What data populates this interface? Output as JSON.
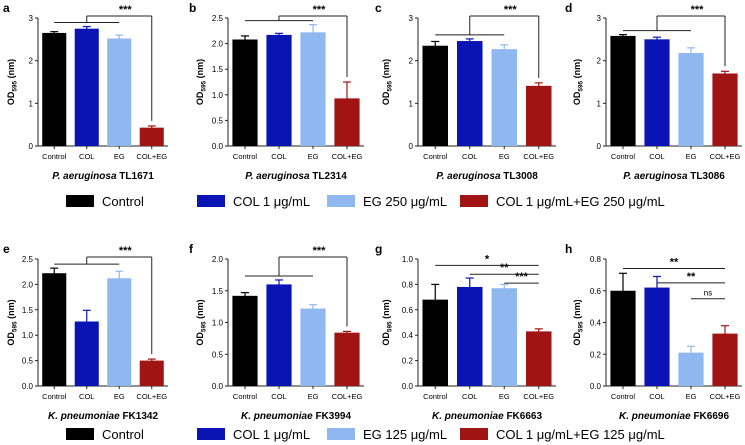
{
  "colors": {
    "control": "#000000",
    "col": "#0a14b4",
    "eg": "#8fb7f0",
    "combo": "#a01414",
    "axis": "#222222"
  },
  "axis_label": {
    "main": "OD",
    "sub": "595",
    "unit": " (nm)"
  },
  "legends": [
    {
      "items": [
        "Control",
        "COL 1 μg/mL",
        "EG 250 μg/mL",
        "COL 1 μg/mL+EG 250 μg/mL"
      ]
    },
    {
      "items": [
        "Control",
        "COL 1 μg/mL",
        "EG 125 μg/mL",
        "COL 1 μg/mL+EG 125 μg/mL"
      ]
    }
  ],
  "chart_data": [
    {
      "type": "bar",
      "panel": "a",
      "italic": "P. aeruginosa",
      "strain": "TL1671",
      "categories": [
        "Control",
        "COL",
        "EG",
        "COL+EG"
      ],
      "values": [
        2.65,
        2.75,
        2.52,
        0.43
      ],
      "errors": [
        0.03,
        0.05,
        0.08,
        0.04
      ],
      "ylim": [
        0,
        3
      ],
      "yticks": [
        "0",
        "1",
        "2",
        "3"
      ],
      "sig": [
        {
          "type": "group",
          "label": "***"
        }
      ]
    },
    {
      "type": "bar",
      "panel": "b",
      "italic": "P. aeruginosa",
      "strain": "TL2314",
      "categories": [
        "Control",
        "COL",
        "EG",
        "COL+EG"
      ],
      "values": [
        2.08,
        2.17,
        2.22,
        0.93
      ],
      "errors": [
        0.07,
        0.03,
        0.15,
        0.32
      ],
      "ylim": [
        0,
        2.5
      ],
      "yticks": [
        "0.0",
        "0.5",
        "1.0",
        "1.5",
        "2.0",
        "2.5"
      ],
      "sig": [
        {
          "type": "group",
          "label": "***"
        }
      ]
    },
    {
      "type": "bar",
      "panel": "c",
      "italic": "P. aeruginosa",
      "strain": "TL3008",
      "categories": [
        "Control",
        "COL",
        "EG",
        "COL+EG"
      ],
      "values": [
        2.35,
        2.46,
        2.27,
        1.41
      ],
      "errors": [
        0.1,
        0.05,
        0.1,
        0.07
      ],
      "ylim": [
        0,
        3
      ],
      "yticks": [
        "0",
        "1",
        "2",
        "3"
      ],
      "sig": [
        {
          "type": "group",
          "label": "***"
        }
      ]
    },
    {
      "type": "bar",
      "panel": "d",
      "italic": "P. aeruginosa",
      "strain": "TL3086",
      "categories": [
        "Control",
        "COL",
        "EG",
        "COL+EG"
      ],
      "values": [
        2.58,
        2.5,
        2.18,
        1.7
      ],
      "errors": [
        0.03,
        0.05,
        0.12,
        0.05
      ],
      "ylim": [
        0,
        3
      ],
      "yticks": [
        "0",
        "1",
        "2",
        "3"
      ],
      "sig": [
        {
          "type": "group",
          "label": "***"
        }
      ]
    },
    {
      "type": "bar",
      "panel": "e",
      "italic": "K. pneumoniae",
      "strain": "FK1342",
      "categories": [
        "Control",
        "COL",
        "EG",
        "COL+EG"
      ],
      "values": [
        2.22,
        1.27,
        2.12,
        0.5
      ],
      "errors": [
        0.1,
        0.22,
        0.14,
        0.03
      ],
      "ylim": [
        0,
        2.5
      ],
      "yticks": [
        "0.0",
        "0.5",
        "1.0",
        "1.5",
        "2.0",
        "2.5"
      ],
      "sig": [
        {
          "type": "group",
          "label": "***"
        }
      ]
    },
    {
      "type": "bar",
      "panel": "f",
      "italic": "K. pneumoniae",
      "strain": "FK3994",
      "categories": [
        "Control",
        "COL",
        "EG",
        "COL+EG"
      ],
      "values": [
        1.42,
        1.6,
        1.22,
        0.84
      ],
      "errors": [
        0.05,
        0.07,
        0.06,
        0.02
      ],
      "ylim": [
        0,
        2
      ],
      "yticks": [
        "0.0",
        "0.5",
        "1.0",
        "1.5",
        "2.0"
      ],
      "sig": [
        {
          "type": "group",
          "label": "***"
        }
      ]
    },
    {
      "type": "bar",
      "panel": "g",
      "italic": "K. pneumoniae",
      "strain": "FK6663",
      "categories": [
        "Control",
        "COL",
        "EG",
        "COL+EG"
      ],
      "values": [
        0.68,
        0.78,
        0.77,
        0.43
      ],
      "errors": [
        0.12,
        0.07,
        0.03,
        0.02
      ],
      "ylim": [
        0,
        1
      ],
      "yticks": [
        "0.0",
        "0.2",
        "0.4",
        "0.6",
        "0.8",
        "1.0"
      ],
      "sig": [
        {
          "type": "pair",
          "from": 0,
          "to": 3,
          "y": 0.95,
          "label": "*"
        },
        {
          "type": "pair",
          "from": 1,
          "to": 3,
          "y": 0.88,
          "label": "**"
        },
        {
          "type": "pair",
          "from": 2,
          "to": 3,
          "y": 0.81,
          "label": "***"
        }
      ]
    },
    {
      "type": "bar",
      "panel": "h",
      "italic": "K. pneumoniae",
      "strain": "FK6696",
      "categories": [
        "Control",
        "COL",
        "EG",
        "COL+EG"
      ],
      "values": [
        0.6,
        0.62,
        0.21,
        0.33
      ],
      "errors": [
        0.11,
        0.07,
        0.04,
        0.05
      ],
      "ylim": [
        0,
        0.8
      ],
      "yticks": [
        "0.0",
        "0.2",
        "0.4",
        "0.6",
        "0.8"
      ],
      "sig": [
        {
          "type": "pair",
          "from": 0,
          "to": 3,
          "y": 0.74,
          "label": "**"
        },
        {
          "type": "pair",
          "from": 1,
          "to": 3,
          "y": 0.65,
          "label": "**"
        },
        {
          "type": "pair",
          "from": 2,
          "to": 3,
          "y": 0.55,
          "label": "ns"
        }
      ]
    }
  ]
}
